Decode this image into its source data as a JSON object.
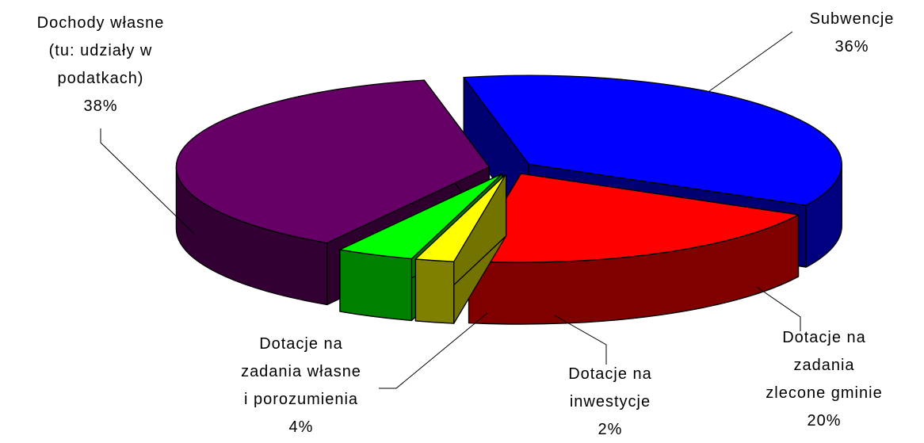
{
  "chart_data": {
    "type": "pie3d",
    "categories": [
      "Subwencje",
      "Dotacje na\nzadania\nzlecone gminie",
      "Dotacje na\ninwestycje",
      "Dotacje na\nzadania własne\ni porozumienia",
      "Dochody własne\n(tu: udziały w\npodatkach)"
    ],
    "values": [
      36,
      20,
      2,
      4,
      38
    ],
    "value_labels": [
      "36%",
      "20%",
      "2%",
      "4%",
      "38%"
    ],
    "colors": [
      "#0000ff",
      "#ff0000",
      "#ffff00",
      "#00ff00",
      "#660066"
    ]
  }
}
